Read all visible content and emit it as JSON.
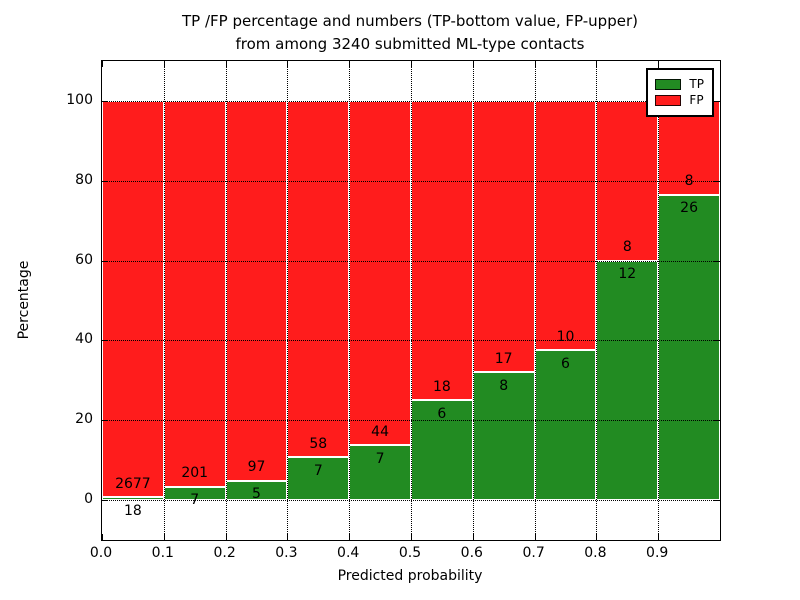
{
  "title": {
    "line1": "TP /FP percentage and numbers (TP-bottom value, FP-upper)",
    "line2": "from among 3240 submitted ML-type contacts"
  },
  "axes": {
    "xlabel": "Predicted probability",
    "ylabel": "Percentage",
    "x_tick_labels": [
      "0.0",
      "0.1",
      "0.2",
      "0.3",
      "0.4",
      "0.5",
      "0.6",
      "0.7",
      "0.8",
      "0.9"
    ],
    "y_tick_labels": [
      "0",
      "20",
      "40",
      "60",
      "80",
      "100"
    ],
    "y_tick_values": [
      0,
      20,
      40,
      60,
      80,
      100
    ]
  },
  "legend": {
    "items": [
      {
        "label": "TP",
        "color": "#228b22"
      },
      {
        "label": "FP",
        "color": "#ff1c1c"
      }
    ]
  },
  "chart_data": {
    "type": "bar",
    "stacked": true,
    "normalized_to_percent": true,
    "title": "TP /FP percentage and numbers (TP-bottom value, FP-upper) from among 3240 submitted ML-type contacts",
    "xlabel": "Predicted probability",
    "ylabel": "Percentage",
    "xlim": [
      0.0,
      1.0
    ],
    "ylim": [
      -10,
      110
    ],
    "bin_width": 0.1,
    "bin_starts": [
      0.0,
      0.1,
      0.2,
      0.3,
      0.4,
      0.5,
      0.6,
      0.7,
      0.8,
      0.9
    ],
    "categories": [
      "0.0-0.1",
      "0.1-0.2",
      "0.2-0.3",
      "0.3-0.4",
      "0.4-0.5",
      "0.5-0.6",
      "0.6-0.7",
      "0.7-0.8",
      "0.8-0.9",
      "0.9-1.0"
    ],
    "series": [
      {
        "name": "TP",
        "color": "#228b22",
        "counts": [
          18,
          7,
          5,
          7,
          7,
          6,
          8,
          6,
          12,
          26
        ]
      },
      {
        "name": "FP",
        "color": "#ff1c1c",
        "counts": [
          2677,
          201,
          97,
          58,
          44,
          18,
          17,
          10,
          8,
          8
        ]
      }
    ],
    "total_contacts": 3240,
    "grid": "dotted black, on top of bars",
    "bar_edge_color": "#ffffff",
    "legend_position": "upper right",
    "label_note": "TP count printed just below green/red boundary, FP count just above it"
  }
}
